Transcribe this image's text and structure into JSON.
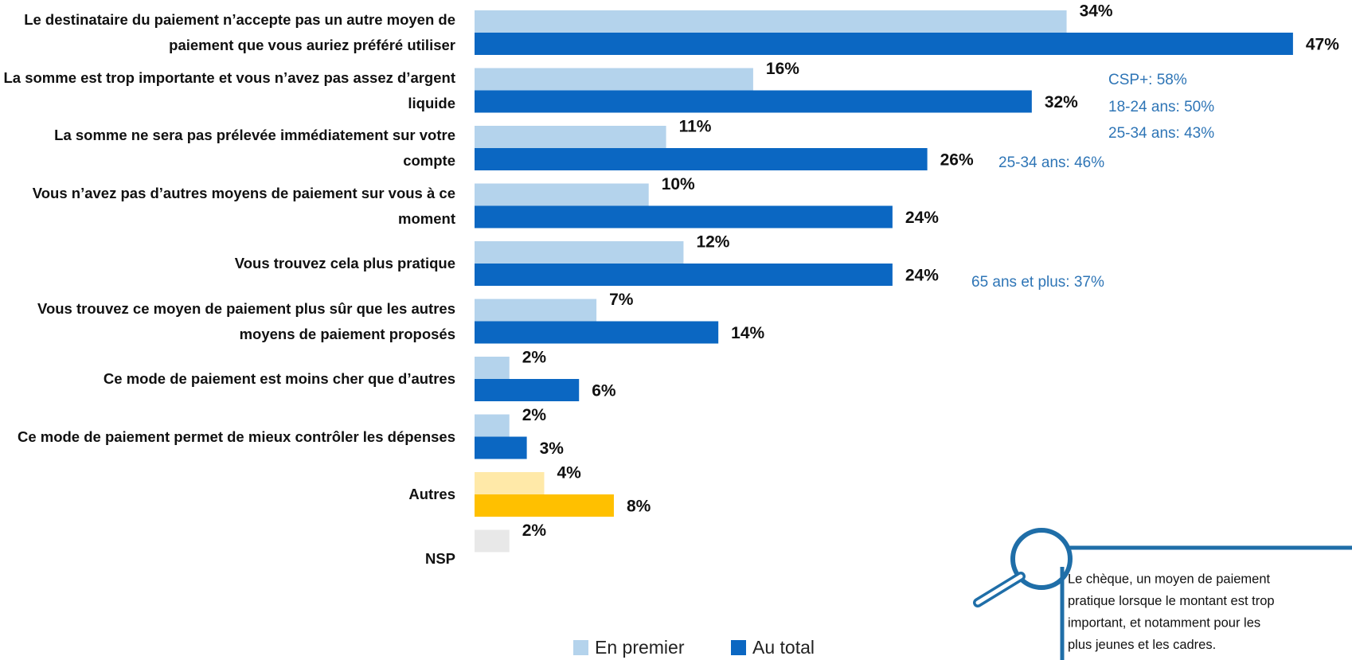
{
  "chart_data": {
    "type": "hbar",
    "categories": [
      "Le destinataire du paiement n’accepte pas un autre moyen de paiement que vous auriez préféré utiliser",
      "La somme est trop importante et vous n’avez pas assez d’argent liquide",
      "La somme ne sera pas prélevée immédiatement sur votre compte",
      "Vous n’avez pas d’autres moyens de paiement sur vous à ce moment",
      "Vous trouvez cela plus pratique",
      "Vous trouvez ce moyen de paiement plus sûr que les autres moyens de paiement proposés",
      "Ce mode de paiement est moins cher que d’autres",
      "Ce mode de paiement permet de mieux contrôler les dépenses",
      "Autres",
      "NSP"
    ],
    "series": [
      {
        "name": "En premier",
        "color": "#b4d3ec",
        "colors": [
          "#b4d3ec",
          "#b4d3ec",
          "#b4d3ec",
          "#b4d3ec",
          "#b4d3ec",
          "#b4d3ec",
          "#b4d3ec",
          "#b4d3ec",
          "#ffe9a8",
          "#e8e8e8"
        ],
        "values": [
          34,
          16,
          11,
          10,
          12,
          7,
          2,
          2,
          4,
          2
        ],
        "value_labels": [
          "34%",
          "16%",
          "11%",
          "10%",
          "12%",
          "7%",
          "2%",
          "2%",
          "4%",
          "2%"
        ]
      },
      {
        "name": "Au total",
        "color": "#0b67c2",
        "colors": [
          "#0b67c2",
          "#0b67c2",
          "#0b67c2",
          "#0b67c2",
          "#0b67c2",
          "#0b67c2",
          "#0b67c2",
          "#0b67c2",
          "#ffc000",
          null
        ],
        "values": [
          47,
          32,
          26,
          24,
          24,
          14,
          6,
          3,
          8,
          null
        ],
        "value_labels": [
          "47%",
          "32%",
          "26%",
          "24%",
          "24%",
          "14%",
          "6%",
          "3%",
          "8%",
          null
        ]
      }
    ],
    "annotations": [
      "CSP+: 58%",
      "18-24 ans: 50%",
      "25-34 ans: 43%",
      "25-34 ans: 46%",
      "65 ans et plus: 37%"
    ]
  },
  "callout": {
    "lines": [
      "Le chèque, un moyen de paiement",
      "pratique lorsque le montant est trop",
      "important, et notamment pour les",
      "plus jeunes et les cadres."
    ]
  }
}
